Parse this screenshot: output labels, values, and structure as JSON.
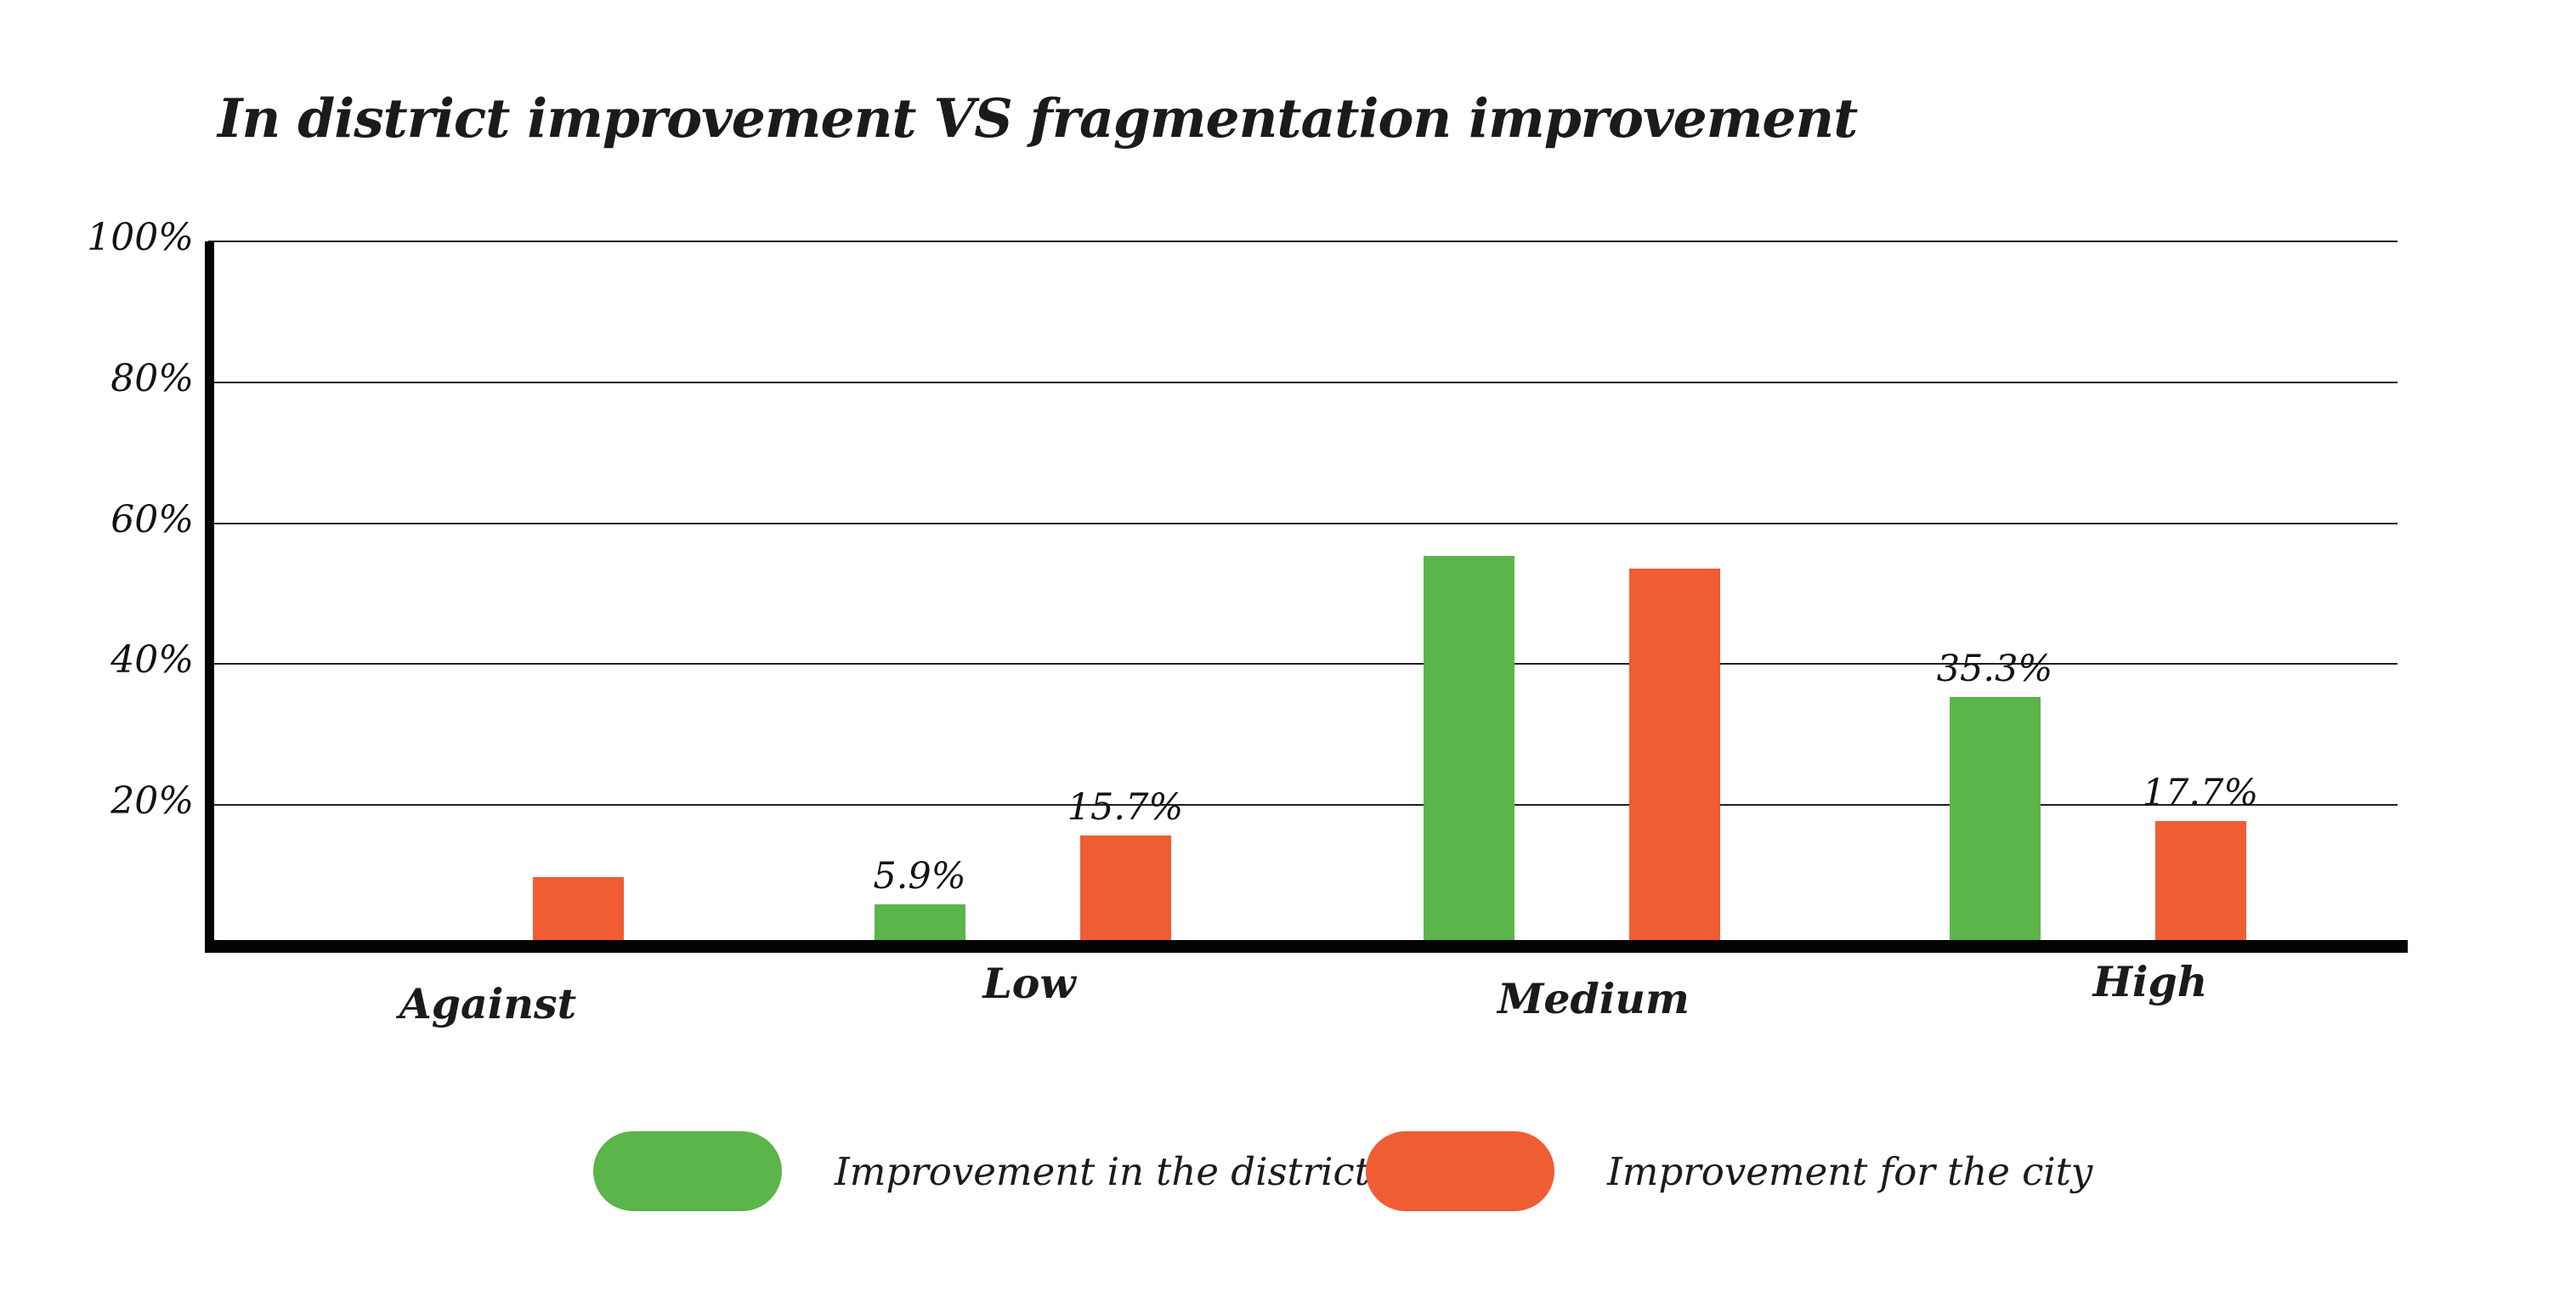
{
  "title": "In district improvement VS fragmentation improvement",
  "colors": {
    "district_green": "#5bb54a",
    "city_orange": "#f05c33",
    "axis_black": "#050505",
    "gridline_gray": "#1f1f1f",
    "text_black": "#1d1a1b"
  },
  "chart_data": {
    "type": "bar",
    "title": "In district improvement VS fragmentation improvement",
    "xlabel": "",
    "ylabel": "",
    "categories": [
      "Against",
      "Low",
      "Medium",
      "High"
    ],
    "series": [
      {
        "name": "Improvement in the district",
        "color": "#5bb54a",
        "values": [
          0,
          5.9,
          55.4,
          35.3
        ],
        "value_labels": [
          "",
          "5.9%",
          "",
          "35.3%"
        ]
      },
      {
        "name": "Improvement for the city",
        "color": "#f05c33",
        "values": [
          9.8,
          15.7,
          53.5,
          17.7
        ],
        "value_labels": [
          "",
          "15.7%",
          "",
          "17.7%"
        ]
      }
    ],
    "ylim": [
      0,
      100
    ],
    "yticks": [
      {
        "value": 100,
        "label": "100%"
      },
      {
        "value": 80,
        "label": "80%"
      },
      {
        "value": 60,
        "label": "60%"
      },
      {
        "value": 40,
        "label": "40%"
      },
      {
        "value": 20,
        "label": "20%"
      }
    ],
    "grid": true,
    "legend_position": "bottom"
  },
  "legend": {
    "items": [
      {
        "label": "Improvement in the district",
        "color": "#5bb54a"
      },
      {
        "label": "Improvement for the city",
        "color": "#f05c33"
      }
    ]
  }
}
